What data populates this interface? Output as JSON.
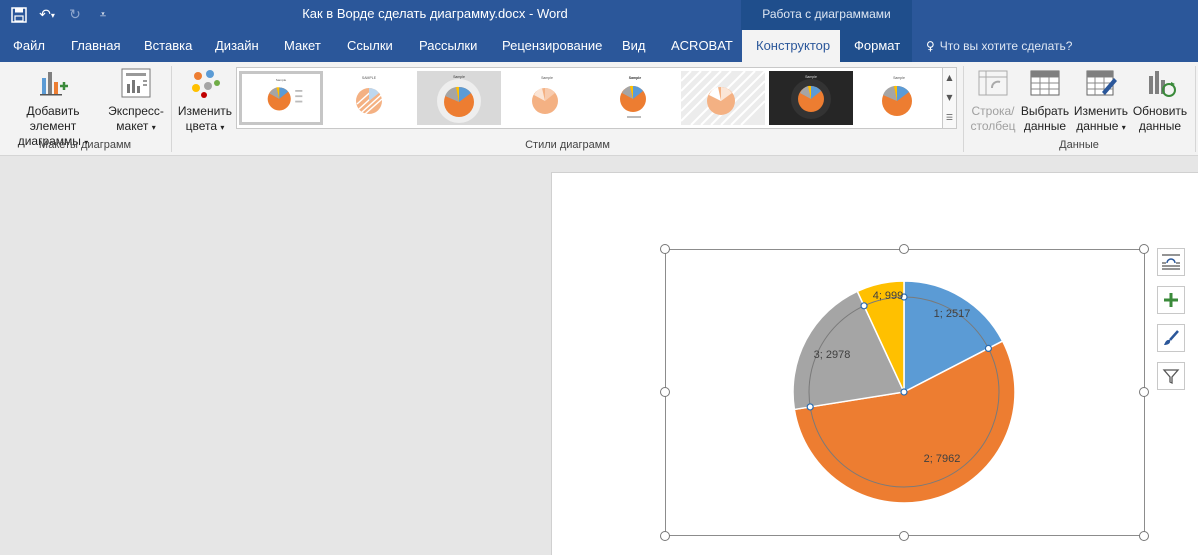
{
  "titlebar": {
    "doc_title": "Как в Ворде сделать диаграмму.docx - Word",
    "context_title": "Работа с диаграммами",
    "qat": {
      "save_icon": "save-icon",
      "undo_icon": "undo-icon",
      "redo_icon": "redo-icon",
      "customize_icon": "customize-icon"
    }
  },
  "tabs": {
    "file": "Файл",
    "home": "Главная",
    "insert": "Вставка",
    "design": "Дизайн",
    "layout": "Макет",
    "references": "Ссылки",
    "mailings": "Рассылки",
    "review": "Рецензирование",
    "view": "Вид",
    "acrobat": "ACROBAT",
    "chart_design": "Конструктор",
    "format": "Формат",
    "tellme": "Что вы хотите сделать?"
  },
  "ribbon": {
    "layouts": {
      "add_element_1": "Добавить элемент",
      "add_element_2": "диаграммы",
      "quick_layout_1": "Экспресс-",
      "quick_layout_2": "макет",
      "group_label": "Макеты диаграмм"
    },
    "styles": {
      "change_colors_1": "Изменить",
      "change_colors_2": "цвета",
      "group_label": "Стили диаграмм"
    },
    "data": {
      "switch_1": "Строка/",
      "switch_2": "столбец",
      "select_1": "Выбрать",
      "select_2": "данные",
      "edit_1": "Изменить",
      "edit_2": "данные",
      "refresh_1": "Обновить",
      "refresh_2": "данные",
      "group_label": "Данные"
    }
  },
  "colors": {
    "accent": "#2b579a",
    "slice1": "#5b9bd5",
    "slice2": "#ed7d31",
    "slice3": "#a5a5a5",
    "slice4": "#ffc000"
  },
  "chart_data": {
    "type": "pie",
    "categories": [
      "1",
      "2",
      "3",
      "4"
    ],
    "values": [
      2517,
      7962,
      2978,
      999
    ],
    "labels": [
      "1; 2517",
      "2; 7962",
      "3; 2978",
      "4; 999"
    ],
    "legend": "none",
    "title": ""
  },
  "side_buttons": [
    "layout-options-icon",
    "chart-elements-icon",
    "chart-styles-icon",
    "chart-filters-icon"
  ]
}
